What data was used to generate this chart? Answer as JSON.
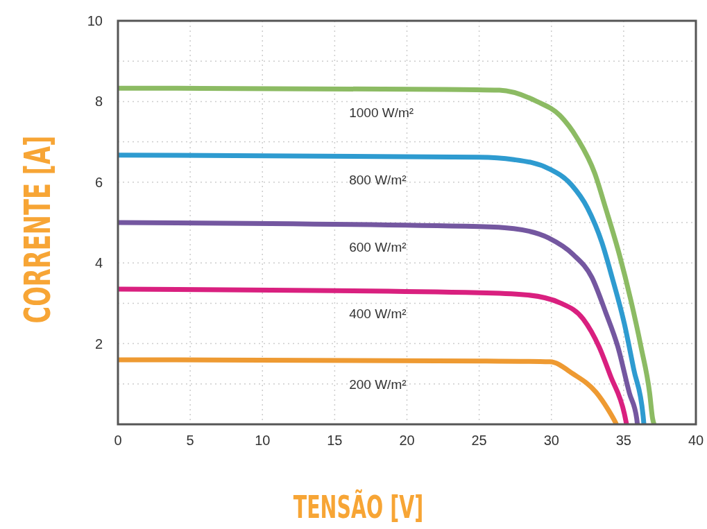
{
  "chart_data": {
    "type": "line",
    "xlabel": "TENSÃO [V]",
    "ylabel": "CORRENTE [A]",
    "xlim": [
      0,
      40
    ],
    "ylim": [
      0,
      10
    ],
    "xticks": [
      0,
      5,
      10,
      15,
      20,
      25,
      30,
      35,
      40
    ],
    "yticks": [
      {
        "value": 1,
        "label": null
      },
      2,
      {
        "value": 3,
        "label": null
      },
      4,
      {
        "value": 5,
        "label": null
      },
      6,
      {
        "value": 7,
        "label": null
      },
      8,
      {
        "value": 9,
        "label": null
      },
      10
    ],
    "grid": true,
    "legend": false,
    "marker": "none",
    "line_style": "solid",
    "series": [
      {
        "name": "1000 W/m²",
        "color": "#8cbb63",
        "x": [
          0,
          22.6,
          26.4,
          29,
          30.6,
          31.8,
          33,
          33.75,
          34.7,
          35.5,
          36.2,
          36.8,
          37,
          37.1
        ],
        "values": [
          8.33,
          8.3,
          8.28,
          8,
          7.65,
          7.08,
          6.22,
          5.36,
          4.21,
          3.07,
          1.92,
          0.77,
          0.15,
          0
        ]
      },
      {
        "name": "800 W/m²",
        "color": "#2e9bd0",
        "x": [
          0,
          25,
          27.4,
          29.8,
          31.4,
          32.5,
          33.5,
          34.2,
          35.05,
          35.7,
          36.35,
          36.4
        ],
        "values": [
          6.67,
          6.62,
          6.56,
          6.34,
          5.93,
          5.36,
          4.5,
          3.64,
          2.49,
          1.36,
          0.2,
          0
        ]
      },
      {
        "name": "600 W/m²",
        "color": "#7457a0",
        "x": [
          0,
          25,
          27.4,
          29.8,
          31.5,
          32.8,
          33.75,
          34.6,
          35.4,
          35.9,
          35.95
        ],
        "values": [
          5,
          4.9,
          4.85,
          4.62,
          4.21,
          3.64,
          2.78,
          1.92,
          0.77,
          0.15,
          0
        ]
      },
      {
        "name": "400 W/m²",
        "color": "#d9207f",
        "x": [
          0,
          25,
          28.2,
          30.6,
          32.2,
          33.3,
          34.1,
          35.05,
          35.2
        ],
        "values": [
          3.35,
          3.26,
          3.21,
          3.01,
          2.61,
          1.92,
          1.19,
          0.26,
          0
        ]
      },
      {
        "name": "200 W/m²",
        "color": "#ee9a32",
        "x": [
          0,
          25,
          29.9,
          31.5,
          33.1,
          33.9,
          34.4,
          34.5
        ],
        "values": [
          1.6,
          1.57,
          1.55,
          1.25,
          0.79,
          0.38,
          0.07,
          0
        ]
      }
    ]
  }
}
